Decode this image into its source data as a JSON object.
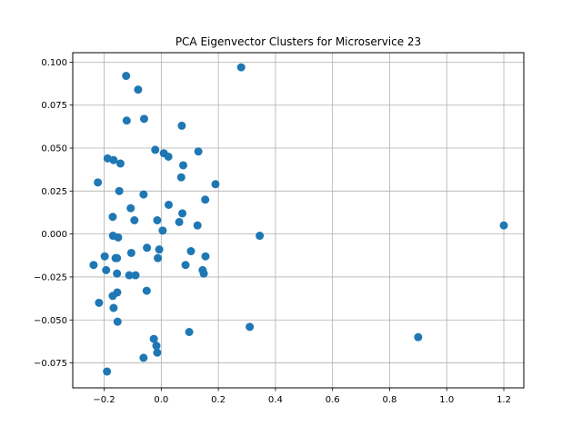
{
  "chart_data": {
    "type": "scatter",
    "title": "PCA Eigenvector Clusters for Microservice 23",
    "xlabel": "",
    "ylabel": "",
    "xlim": [
      -0.31,
      1.27
    ],
    "ylim": [
      -0.0895,
      0.1055
    ],
    "xticks": [
      -0.2,
      0.0,
      0.2,
      0.4,
      0.6,
      0.8,
      1.0,
      1.2
    ],
    "xtick_labels": [
      "−0.2",
      "0.0",
      "0.2",
      "0.4",
      "0.6",
      "0.8",
      "1.0",
      "1.2"
    ],
    "yticks": [
      -0.075,
      -0.05,
      -0.025,
      0.0,
      0.025,
      0.05,
      0.075,
      0.1
    ],
    "ytick_labels": [
      "−0.075",
      "−0.050",
      "−0.025",
      "0.000",
      "0.025",
      "0.050",
      "0.075",
      "0.100"
    ],
    "grid": true,
    "marker_color": "#1f77b4",
    "points": [
      {
        "x": -0.123,
        "y": 0.092
      },
      {
        "x": -0.081,
        "y": 0.084
      },
      {
        "x": 0.28,
        "y": 0.097
      },
      {
        "x": -0.121,
        "y": 0.066
      },
      {
        "x": -0.06,
        "y": 0.067
      },
      {
        "x": 0.072,
        "y": 0.063
      },
      {
        "x": -0.188,
        "y": 0.044
      },
      {
        "x": -0.167,
        "y": 0.043
      },
      {
        "x": -0.143,
        "y": 0.041
      },
      {
        "x": -0.021,
        "y": 0.049
      },
      {
        "x": 0.009,
        "y": 0.047
      },
      {
        "x": 0.025,
        "y": 0.045
      },
      {
        "x": 0.13,
        "y": 0.048
      },
      {
        "x": 0.077,
        "y": 0.04
      },
      {
        "x": 0.07,
        "y": 0.033
      },
      {
        "x": -0.222,
        "y": 0.03
      },
      {
        "x": -0.147,
        "y": 0.025
      },
      {
        "x": -0.062,
        "y": 0.023
      },
      {
        "x": 0.19,
        "y": 0.029
      },
      {
        "x": 0.154,
        "y": 0.02
      },
      {
        "x": 0.026,
        "y": 0.017
      },
      {
        "x": -0.107,
        "y": 0.015
      },
      {
        "x": 0.074,
        "y": 0.012
      },
      {
        "x": -0.17,
        "y": 0.01
      },
      {
        "x": -0.094,
        "y": 0.008
      },
      {
        "x": -0.014,
        "y": 0.008
      },
      {
        "x": 0.063,
        "y": 0.007
      },
      {
        "x": 0.127,
        "y": 0.005
      },
      {
        "x": 1.2,
        "y": 0.005
      },
      {
        "x": 0.005,
        "y": 0.002
      },
      {
        "x": -0.169,
        "y": -0.001
      },
      {
        "x": -0.151,
        "y": -0.002
      },
      {
        "x": 0.345,
        "y": -0.001
      },
      {
        "x": -0.05,
        "y": -0.008
      },
      {
        "x": -0.007,
        "y": -0.009
      },
      {
        "x": 0.104,
        "y": -0.01
      },
      {
        "x": -0.105,
        "y": -0.011
      },
      {
        "x": 0.155,
        "y": -0.013
      },
      {
        "x": -0.198,
        "y": -0.013
      },
      {
        "x": -0.16,
        "y": -0.014
      },
      {
        "x": -0.155,
        "y": -0.014
      },
      {
        "x": -0.012,
        "y": -0.014
      },
      {
        "x": -0.237,
        "y": -0.018
      },
      {
        "x": 0.085,
        "y": -0.018
      },
      {
        "x": -0.193,
        "y": -0.021
      },
      {
        "x": 0.145,
        "y": -0.021
      },
      {
        "x": 0.149,
        "y": -0.023
      },
      {
        "x": -0.155,
        "y": -0.023
      },
      {
        "x": -0.112,
        "y": -0.024
      },
      {
        "x": -0.09,
        "y": -0.024
      },
      {
        "x": -0.051,
        "y": -0.033
      },
      {
        "x": -0.154,
        "y": -0.034
      },
      {
        "x": -0.17,
        "y": -0.036
      },
      {
        "x": -0.218,
        "y": -0.04
      },
      {
        "x": -0.167,
        "y": -0.043
      },
      {
        "x": -0.153,
        "y": -0.051
      },
      {
        "x": 0.31,
        "y": -0.054
      },
      {
        "x": 0.098,
        "y": -0.057
      },
      {
        "x": 0.9,
        "y": -0.06
      },
      {
        "x": -0.026,
        "y": -0.061
      },
      {
        "x": -0.017,
        "y": -0.065
      },
      {
        "x": -0.014,
        "y": -0.069
      },
      {
        "x": -0.062,
        "y": -0.072
      },
      {
        "x": -0.19,
        "y": -0.08
      }
    ]
  }
}
